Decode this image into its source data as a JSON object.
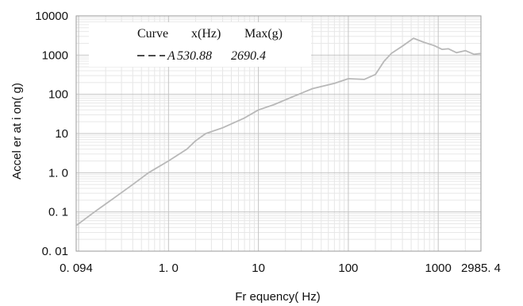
{
  "chart_data": {
    "type": "line",
    "title": "",
    "xlabel": "Fr equency( Hz)",
    "ylabel": "Accel er at i on( g)",
    "x_scale": "log",
    "y_scale": "log",
    "xlim": [
      0.094,
      2985.4
    ],
    "ylim": [
      0.01,
      10000
    ],
    "grid": true,
    "x_tick_labels": [
      "0. 094",
      "1. 0",
      "10",
      "100",
      "1000",
      "2985. 4"
    ],
    "x_tick_values": [
      0.094,
      1,
      10,
      100,
      1000,
      2985.4
    ],
    "y_tick_labels": [
      "0. 01",
      "0. 1",
      "1. 0",
      "10",
      "100",
      "1000",
      "10000"
    ],
    "y_tick_values": [
      0.01,
      0.1,
      1,
      10,
      100,
      1000,
      10000
    ],
    "legend": {
      "position": "top-left",
      "header": [
        "Curve",
        "x(Hz)",
        "Max(g)"
      ],
      "entries": [
        {
          "line_style": "dashed",
          "name": "A",
          "x": "530.88",
          "max": "2690.4"
        }
      ]
    },
    "series": [
      {
        "color": "#b8b8b8",
        "x": [
          0.094,
          0.15,
          0.25,
          0.4,
          0.6,
          1.0,
          1.6,
          2.0,
          2.6,
          4.0,
          7.0,
          10,
          15,
          25,
          40,
          70,
          100,
          150,
          200,
          250,
          300,
          400,
          530.88,
          700,
          900,
          1100,
          1300,
          1600,
          2000,
          2500,
          2985.4
        ],
        "y": [
          0.045,
          0.1,
          0.23,
          0.5,
          1.0,
          2.0,
          4.0,
          6.5,
          10,
          14,
          25,
          40,
          55,
          90,
          140,
          190,
          250,
          240,
          320,
          700,
          1100,
          1700,
          2690.4,
          2100,
          1750,
          1400,
          1450,
          1150,
          1300,
          1050,
          1100
        ]
      }
    ]
  }
}
